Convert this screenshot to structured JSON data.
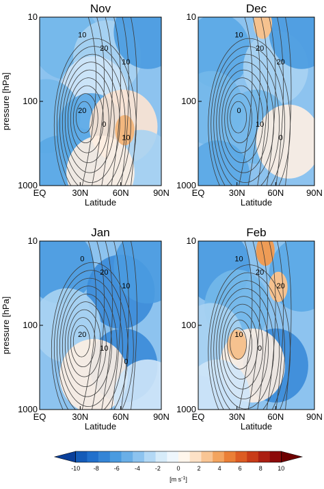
{
  "chart_data": {
    "type": "heatmap",
    "description_panels": [
      "Nov",
      "Dec",
      "Jan",
      "Feb"
    ],
    "panels": [
      {
        "title": "Nov",
        "xlabel": "Latitude",
        "ylabel": "pressure [hPa]",
        "xticks": [
          "EQ",
          "30N",
          "60N",
          "90N"
        ],
        "yticks": [
          "10",
          "100",
          "1000"
        ],
        "contour_labels": [
          "10",
          "20",
          "10",
          "20",
          "0",
          "10"
        ],
        "core_lat": 32,
        "core_p": 150,
        "fill": [
          {
            "lat": 20,
            "p": 20,
            "color": "#73b8ea"
          },
          {
            "lat": 50,
            "p": 30,
            "color": "#a9d3f2"
          },
          {
            "lat": 80,
            "p": 15,
            "color": "#4a9be0"
          },
          {
            "lat": 40,
            "p": 80,
            "color": "#cfe6f8"
          },
          {
            "lat": 5,
            "p": 150,
            "color": "#73b8ea"
          },
          {
            "lat": 38,
            "p": 220,
            "color": "#5aa9e5"
          },
          {
            "lat": 62,
            "p": 200,
            "color": "#fde4d1"
          },
          {
            "lat": 75,
            "p": 600,
            "color": "#a9d3f2"
          },
          {
            "lat": 15,
            "p": 700,
            "color": "#5aa9e5"
          },
          {
            "lat": 45,
            "p": 700,
            "color": "#fff0e2"
          }
        ],
        "orange": [
          {
            "lat": 63,
            "p": 220,
            "color": "#f3b77e"
          }
        ]
      },
      {
        "title": "Dec",
        "xlabel": "Latitude",
        "ylabel": "",
        "xticks": [
          "EQ",
          "30N",
          "60N",
          "90N"
        ],
        "yticks": [
          "10",
          "100",
          "1000"
        ],
        "contour_labels": [
          "10",
          "20",
          "20",
          "0",
          "10",
          "0"
        ],
        "core_lat": 30,
        "core_p": 150,
        "fill": [
          {
            "lat": 15,
            "p": 25,
            "color": "#5aa9e5"
          },
          {
            "lat": 60,
            "p": 40,
            "color": "#a9d3f2"
          },
          {
            "lat": 80,
            "p": 15,
            "color": "#4a9be0"
          },
          {
            "lat": 10,
            "p": 120,
            "color": "#73b8ea"
          },
          {
            "lat": 45,
            "p": 200,
            "color": "#73b8ea"
          },
          {
            "lat": 70,
            "p": 300,
            "color": "#fff0e2"
          },
          {
            "lat": 15,
            "p": 800,
            "color": "#5aa9e5"
          }
        ],
        "orange": [
          {
            "lat": 50,
            "p": 12,
            "color": "#f6c28f"
          }
        ]
      },
      {
        "title": "Jan",
        "xlabel": "Latitude",
        "ylabel": "pressure [hPa]",
        "xticks": [
          "EQ",
          "30N",
          "60N",
          "90N"
        ],
        "yticks": [
          "10",
          "100",
          "1000"
        ],
        "contour_labels": [
          "0",
          "20",
          "10",
          "20",
          "10",
          "0"
        ],
        "core_lat": 30,
        "core_p": 150,
        "fill": [
          {
            "lat": 15,
            "p": 20,
            "color": "#4a9be0"
          },
          {
            "lat": 60,
            "p": 40,
            "color": "#3a8bd8"
          },
          {
            "lat": 80,
            "p": 20,
            "color": "#4a9be0"
          },
          {
            "lat": 20,
            "p": 100,
            "color": "#a9d3f2"
          },
          {
            "lat": 62,
            "p": 300,
            "color": "#3a8bd8"
          },
          {
            "lat": 40,
            "p": 400,
            "color": "#fff0e2"
          },
          {
            "lat": 80,
            "p": 700,
            "color": "#cfe6f8"
          }
        ],
        "orange": []
      },
      {
        "title": "Feb",
        "xlabel": "Latitude",
        "ylabel": "",
        "xticks": [
          "EQ",
          "30N",
          "60N",
          "90N"
        ],
        "yticks": [
          "10",
          "100",
          "1000"
        ],
        "contour_labels": [
          "10",
          "20",
          "20",
          "10",
          "0"
        ],
        "core_lat": 30,
        "core_p": 160,
        "fill": [
          {
            "lat": 15,
            "p": 20,
            "color": "#4a9be0"
          },
          {
            "lat": 30,
            "p": 60,
            "color": "#73b8ea"
          },
          {
            "lat": 80,
            "p": 25,
            "color": "#5aa9e5"
          },
          {
            "lat": 10,
            "p": 150,
            "color": "#a9d3f2"
          },
          {
            "lat": 60,
            "p": 300,
            "color": "#3a8bd8"
          },
          {
            "lat": 42,
            "p": 300,
            "color": "#fff0e2"
          },
          {
            "lat": 15,
            "p": 700,
            "color": "#cfe6f8"
          }
        ],
        "orange": [
          {
            "lat": 52,
            "p": 13,
            "color": "#ee9c56"
          },
          {
            "lat": 62,
            "p": 35,
            "color": "#f6c28f"
          },
          {
            "lat": 30,
            "p": 170,
            "color": "#f6c28f"
          }
        ]
      }
    ],
    "colorbar": {
      "ticks": [
        "-10",
        "-8",
        "-6",
        "-4",
        "-2",
        "0",
        "2",
        "4",
        "6",
        "8",
        "10"
      ],
      "unit_label": "[m s",
      "unit_sup": "-1",
      "unit_close": "]",
      "colors": [
        "#0a3f9a",
        "#145bb8",
        "#2170cc",
        "#3585d6",
        "#4a9be0",
        "#6aafe7",
        "#8dc3ef",
        "#b3d8f5",
        "#d6ebf9",
        "#eef6fc",
        "#fff6ec",
        "#fde1c6",
        "#f9c594",
        "#f3a45f",
        "#ea7f36",
        "#dc5c23",
        "#c83b18",
        "#ab1f12",
        "#8c0a0a",
        "#6e0000"
      ]
    }
  }
}
